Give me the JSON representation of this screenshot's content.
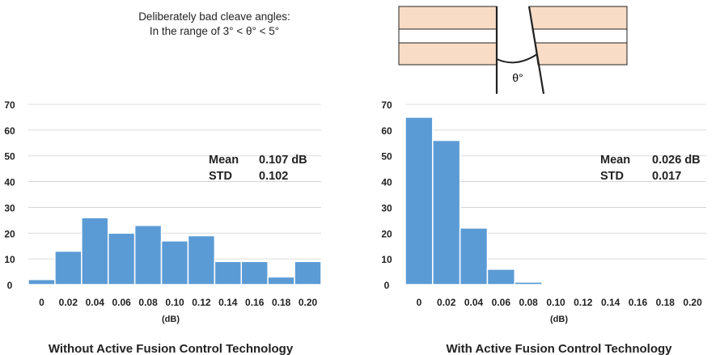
{
  "annotation": {
    "line1": "Deliberately bad cleave angles:",
    "line2": "In the range of 3° < θ° < 5°"
  },
  "diagram": {
    "angle_label": "θ°",
    "colors": {
      "cladding": "#f8dcc6",
      "core": "#ffffff",
      "outline": "#222222"
    }
  },
  "style": {
    "bar_color": "#5b9bd5",
    "bar_stroke": "#ffffff",
    "grid_color": "#d0d0d0"
  },
  "chart_data": [
    {
      "type": "bar",
      "title": "Without Active Fusion Control Technology",
      "xlabel": "(dB)",
      "ylabel": "",
      "categories": [
        "0",
        "0.02",
        "0.04",
        "0.06",
        "0.08",
        "0.10",
        "0.12",
        "0.14",
        "0.16",
        "0.18",
        "0.20"
      ],
      "values": [
        2,
        13,
        26,
        20,
        23,
        17,
        19,
        9,
        9,
        3,
        9
      ],
      "ylim": [
        0,
        70
      ],
      "yticks": [
        0,
        10,
        20,
        30,
        40,
        50,
        60,
        70
      ],
      "grid": true,
      "stats": {
        "mean_label": "Mean",
        "mean_value": "0.107 dB",
        "std_label": "STD",
        "std_value": "0.102"
      }
    },
    {
      "type": "bar",
      "title": "With Active Fusion Control Technology",
      "xlabel": "(dB)",
      "ylabel": "",
      "categories": [
        "0",
        "0.02",
        "0.04",
        "0.06",
        "0.08",
        "0.10",
        "0.12",
        "0.14",
        "0.16",
        "0.18",
        "0.20"
      ],
      "values": [
        65,
        56,
        22,
        6,
        1,
        0,
        0,
        0,
        0,
        0,
        0
      ],
      "ylim": [
        0,
        70
      ],
      "yticks": [
        0,
        10,
        20,
        30,
        40,
        50,
        60,
        70
      ],
      "grid": true,
      "stats": {
        "mean_label": "Mean",
        "mean_value": "0.026 dB",
        "std_label": "STD",
        "std_value": "0.017"
      }
    }
  ]
}
